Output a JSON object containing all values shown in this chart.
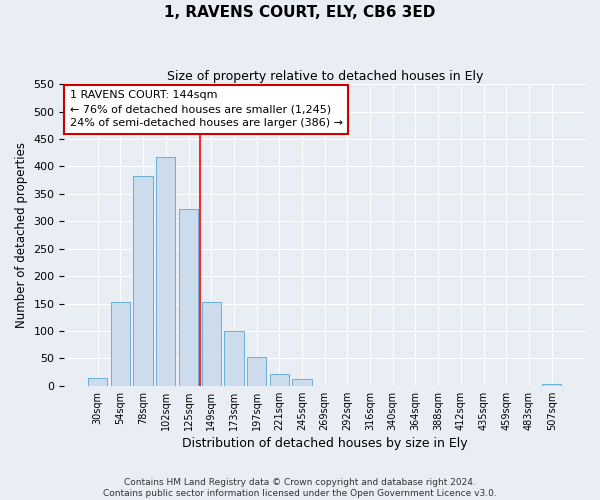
{
  "title": "1, RAVENS COURT, ELY, CB6 3ED",
  "subtitle": "Size of property relative to detached houses in Ely",
  "xlabel": "Distribution of detached houses by size in Ely",
  "ylabel": "Number of detached properties",
  "bar_labels": [
    "30sqm",
    "54sqm",
    "78sqm",
    "102sqm",
    "125sqm",
    "149sqm",
    "173sqm",
    "197sqm",
    "221sqm",
    "245sqm",
    "269sqm",
    "292sqm",
    "316sqm",
    "340sqm",
    "364sqm",
    "388sqm",
    "412sqm",
    "435sqm",
    "459sqm",
    "483sqm",
    "507sqm"
  ],
  "bar_values": [
    15,
    153,
    382,
    418,
    322,
    153,
    100,
    53,
    22,
    12,
    0,
    0,
    0,
    0,
    0,
    0,
    0,
    0,
    0,
    0,
    3
  ],
  "bar_color": "#ccdcec",
  "bar_edgecolor": "#6baed6",
  "vline_index": 4.5,
  "vline_color": "red",
  "annotation_title": "1 RAVENS COURT: 144sqm",
  "annotation_line1": "← 76% of detached houses are smaller (1,245)",
  "annotation_line2": "24% of semi-detached houses are larger (386) →",
  "annotation_box_edgecolor": "#cc0000",
  "ylim": [
    0,
    550
  ],
  "yticks": [
    0,
    50,
    100,
    150,
    200,
    250,
    300,
    350,
    400,
    450,
    500,
    550
  ],
  "footer1": "Contains HM Land Registry data © Crown copyright and database right 2024.",
  "footer2": "Contains public sector information licensed under the Open Government Licence v3.0.",
  "bg_color": "#e8eef4"
}
